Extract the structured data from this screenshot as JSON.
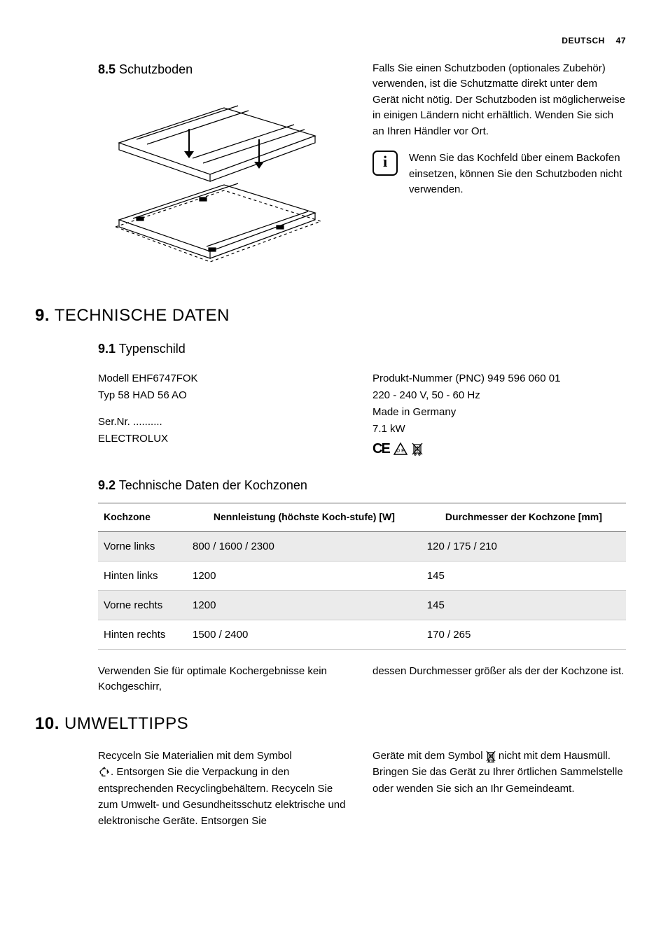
{
  "header": {
    "language": "DEUTSCH",
    "page": "47"
  },
  "section85": {
    "num": "8.5",
    "title": "Schutzboden",
    "rightPara": "Falls Sie einen Schutzboden (optionales Zubehör) verwenden, ist die Schutzmatte direkt unter dem Gerät nicht nötig. Der Schutzboden ist möglicherweise in einigen Ländern nicht erhältlich. Wenden Sie sich an Ihren Händler vor Ort.",
    "infoText": "Wenn Sie das Kochfeld über einem Backofen einsetzen, können Sie den Schutzboden nicht verwenden."
  },
  "section9": {
    "num": "9.",
    "title": "TECHNISCHE DATEN"
  },
  "section91": {
    "num": "9.1",
    "title": "Typenschild",
    "left": {
      "l1": "Modell EHF6747FOK",
      "l2": "Typ 58 HAD 56 AO",
      "l3": "Ser.Nr. ..........",
      "l4": "ELECTROLUX"
    },
    "right": {
      "l1": "Produkt-Nummer (PNC) 949 596 060 01",
      "l2": "220 - 240 V, 50 - 60 Hz",
      "l3": "Made in Germany",
      "l4": "7.1 kW"
    }
  },
  "section92": {
    "num": "9.2",
    "title": "Technische Daten der Kochzonen",
    "table": {
      "headers": [
        "Kochzone",
        "Nennleistung (höchste Koch-stufe) [W]",
        "Durchmesser der Kochzone [mm]"
      ],
      "rows": [
        {
          "zone": "Vorne links",
          "power": "800 / 1600 / 2300",
          "diameter": "120 / 175 / 210",
          "shaded": true
        },
        {
          "zone": "Hinten links",
          "power": "1200",
          "diameter": "145",
          "shaded": false
        },
        {
          "zone": "Vorne rechts",
          "power": "1200",
          "diameter": "145",
          "shaded": true
        },
        {
          "zone": "Hinten rechts",
          "power": "1500 / 2400",
          "diameter": "170 / 265",
          "shaded": false
        }
      ]
    },
    "postLeft": "Verwenden Sie für optimale Kochergebnisse kein Kochgeschirr,",
    "postRight": "dessen Durchmesser größer als der der Kochzone ist."
  },
  "section10": {
    "num": "10.",
    "title": "UMWELTTIPPS",
    "leftPre": "Recyceln Sie Materialien mit dem Symbol",
    "leftPost": ". Entsorgen Sie die Verpackung in den entsprechenden Recyclingbehältern. Recyceln Sie zum Umwelt- und Gesundheitsschutz elektrische und elektronische Geräte. Entsorgen Sie",
    "rightPre": "Geräte mit dem Symbol ",
    "rightPost": " nicht mit dem Hausmüll. Bringen Sie das Gerät zu Ihrer örtlichen Sammelstelle oder wenden Sie sich an Ihr Gemeindeamt."
  }
}
